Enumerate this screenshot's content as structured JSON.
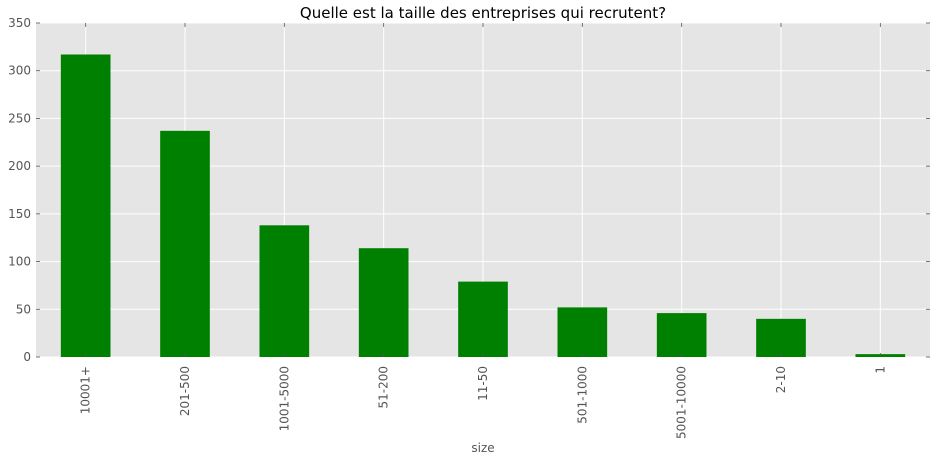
{
  "chart_data": {
    "type": "bar",
    "title": "Quelle est la taille des entreprises qui recrutent?",
    "xlabel": "size",
    "ylabel": "",
    "categories": [
      "10001+",
      "201-500",
      "1001-5000",
      "51-200",
      "11-50",
      "501-1000",
      "5001-10000",
      "2-10",
      "1"
    ],
    "values": [
      317,
      237,
      138,
      114,
      79,
      52,
      46,
      40,
      3
    ],
    "ylim": [
      0,
      350
    ],
    "yticks": [
      0,
      50,
      100,
      150,
      200,
      250,
      300,
      350
    ],
    "bar_color": "#008000",
    "background_color": "#e5e5e5",
    "grid": true,
    "legend": "none"
  }
}
